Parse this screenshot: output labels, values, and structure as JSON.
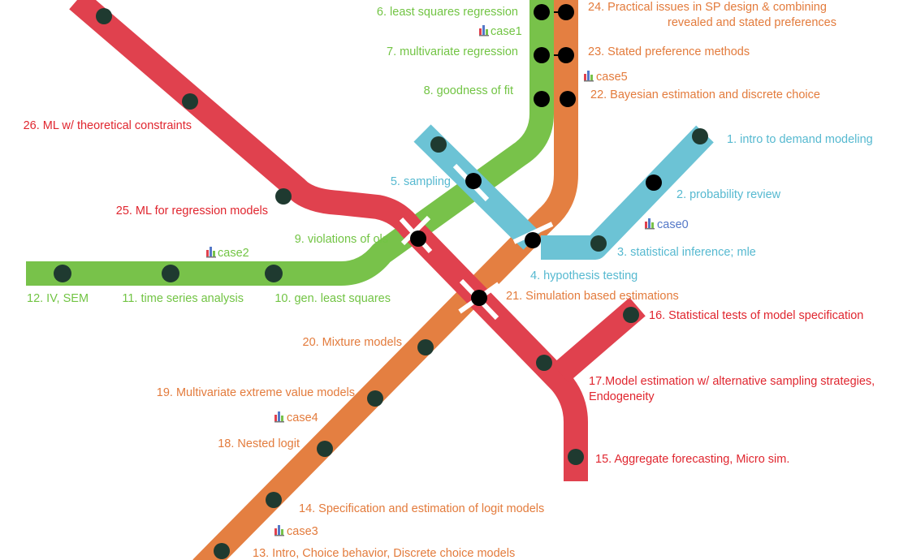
{
  "colors": {
    "blue": "#6cc3d5",
    "green": "#78c24a",
    "orange": "#e47f41",
    "red": "#e0414e",
    "dot": "#000000",
    "dot_dark": "#1f3a30"
  },
  "icons": {
    "case": "bar-chart-icon"
  },
  "lines": {
    "blue": {
      "stations": {
        "s1": "1. intro to demand modeling",
        "s2": "2. probability review",
        "s3": "3. statistical inference; mle",
        "s4": "4. hypothesis testing",
        "s5": "5. sampling"
      },
      "case": "case0"
    },
    "green": {
      "stations": {
        "s6": "6. least squares regression",
        "s7": "7. multivariate regression",
        "s8": "8. goodness of fit",
        "s9": "9. violations of ols",
        "s10": "10. gen. least squares",
        "s11": "11. time series analysis",
        "s12": "12. IV, SEM"
      },
      "case1": "case1",
      "case2": "case2"
    },
    "orange": {
      "stations": {
        "s13": "13. Intro, Choice behavior, Discrete choice models",
        "s14": "14. Specification and estimation of logit models",
        "s18": "18. Nested logit",
        "s19": "19. Multivariate extreme value models",
        "s20": "20. Mixture models",
        "s21": "21. Simulation based estimations",
        "s22": "22. Bayesian estimation and discrete choice",
        "s23": "23. Stated preference methods",
        "s24_line1": "24. Practical issues in SP design & combining",
        "s24_line2": "revealed and stated preferences"
      },
      "case3": "case3",
      "case4": "case4",
      "case5": "case5"
    },
    "red": {
      "stations": {
        "s15": "15. Aggregate forecasting, Micro sim.",
        "s16": "16. Statistical tests of model specification",
        "s17_line1": "17.Model estimation w/ alternative sampling strategies,",
        "s17_line2": "Endogeneity",
        "s25": "25. ML for regression models",
        "s26": "26. ML w/ theoretical constraints"
      }
    }
  }
}
